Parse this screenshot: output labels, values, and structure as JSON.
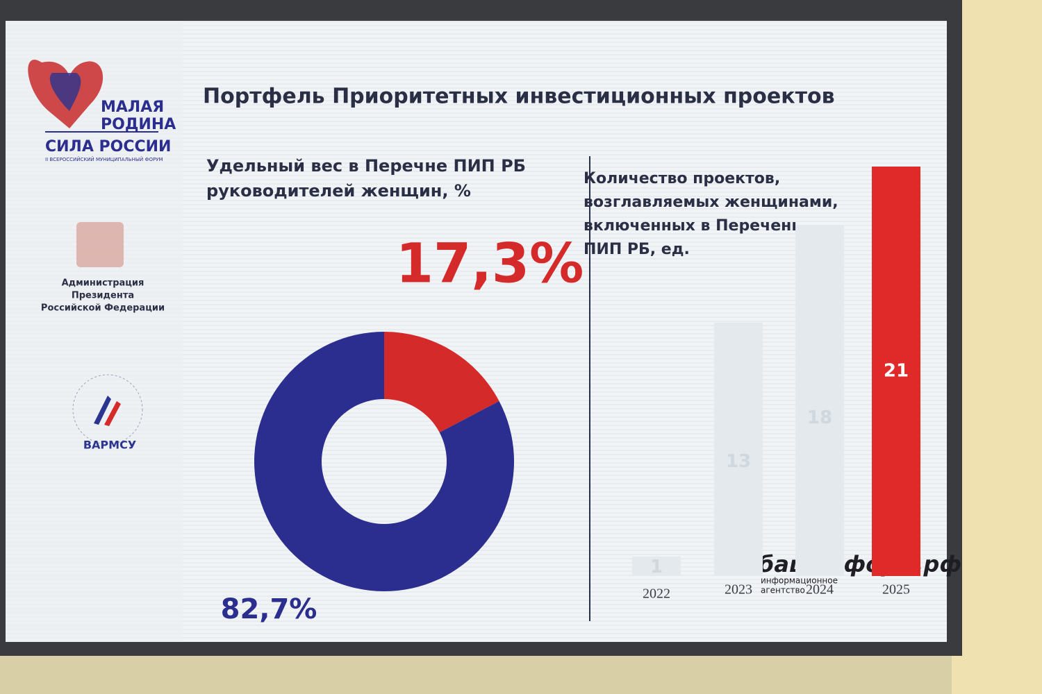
{
  "slide": {
    "title": "Портфель Приоритетных инвестиционных проектов",
    "logos": {
      "forum": [
        "МАЛАЯ",
        "РОДИНА",
        "СИЛА РОССИИ",
        "II ВСЕРОССИЙСКИЙ МУНИЦИПАЛЬНЫЙ ФОРУМ"
      ],
      "administration": [
        "Администрация",
        "Президента",
        "Российской Федерации"
      ],
      "varmsu": "ВАРМСУ"
    }
  },
  "watermark": {
    "brand": "башинформ.рф",
    "caption": [
      "информационное",
      "агентство"
    ]
  },
  "chart_data": [
    {
      "type": "donut",
      "title": [
        "Удельный вес в Перечне ПИП РБ",
        "руководителей женщин, %"
      ],
      "values": [
        17.3,
        82.7
      ],
      "value_labels": [
        "17,3%",
        "82,7%"
      ],
      "colors": [
        "#d42a2a",
        "#2b2e8e"
      ]
    },
    {
      "type": "bar",
      "title": [
        "Количество проектов,",
        "возглавляемых женщинами,",
        "включенных в Перечень",
        "ПИП РБ, ед."
      ],
      "categories": [
        "2022",
        "2023",
        "2024",
        "2025"
      ],
      "values": [
        1,
        13,
        18,
        21
      ],
      "colors": [
        "#e3e9ed",
        "#e3e9ed",
        "#e3e9ed",
        "#e02a2a"
      ]
    }
  ]
}
